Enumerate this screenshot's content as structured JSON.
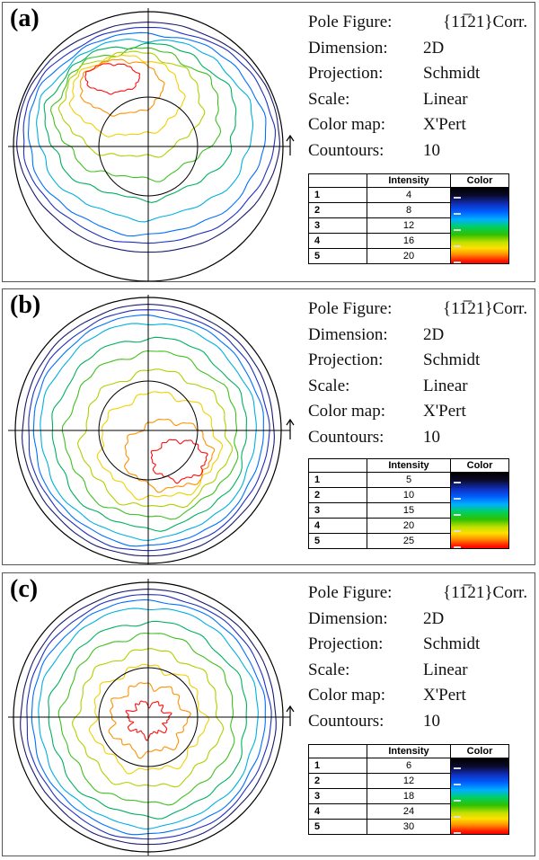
{
  "panels": [
    {
      "label": "(a)",
      "info": {
        "pole_figure_key": "Pole Figure:",
        "pole_figure_value": "{11̅21}Corr.",
        "dimension_key": "Dimension:",
        "dimension_value": "2D",
        "projection_key": "Projection:",
        "projection_value": "Schmidt",
        "scale_key": "Scale:",
        "scale_value": "Linear",
        "colormap_key": "Color map:",
        "colormap_value": "X'Pert",
        "contours_key": "Countours:",
        "contours_value": "10"
      },
      "legend": {
        "header_intensity": "Intensity",
        "header_color": "Color",
        "rows": [
          {
            "index": "1",
            "intensity": "4"
          },
          {
            "index": "2",
            "intensity": "8"
          },
          {
            "index": "3",
            "intensity": "12"
          },
          {
            "index": "4",
            "intensity": "16"
          },
          {
            "index": "5",
            "intensity": "20"
          }
        ]
      }
    },
    {
      "label": "(b)",
      "info": {
        "pole_figure_key": "Pole Figure:",
        "pole_figure_value": "{11̅21}Corr.",
        "dimension_key": "Dimension:",
        "dimension_value": "2D",
        "projection_key": "Projection:",
        "projection_value": "Schmidt",
        "scale_key": "Scale:",
        "scale_value": "Linear",
        "colormap_key": "Color map:",
        "colormap_value": "X'Pert",
        "contours_key": "Countours:",
        "contours_value": "10"
      },
      "legend": {
        "header_intensity": "Intensity",
        "header_color": "Color",
        "rows": [
          {
            "index": "1",
            "intensity": "5"
          },
          {
            "index": "2",
            "intensity": "10"
          },
          {
            "index": "3",
            "intensity": "15"
          },
          {
            "index": "4",
            "intensity": "20"
          },
          {
            "index": "5",
            "intensity": "25"
          }
        ]
      }
    },
    {
      "label": "(c)",
      "info": {
        "pole_figure_key": "Pole Figure:",
        "pole_figure_value": "{11̅21}Corr.",
        "dimension_key": "Dimension:",
        "dimension_value": "2D",
        "projection_key": "Projection:",
        "projection_value": "Schmidt",
        "scale_key": "Scale:",
        "scale_value": "Linear",
        "colormap_key": "Color map:",
        "colormap_value": "X'Pert",
        "contours_key": "Countours:",
        "contours_value": "10"
      },
      "legend": {
        "header_intensity": "Intensity",
        "header_color": "Color",
        "rows": [
          {
            "index": "1",
            "intensity": "6"
          },
          {
            "index": "2",
            "intensity": "12"
          },
          {
            "index": "3",
            "intensity": "18"
          },
          {
            "index": "4",
            "intensity": "24"
          },
          {
            "index": "5",
            "intensity": "30"
          }
        ]
      }
    }
  ],
  "contour_colors": [
    "#1a1a6e",
    "#2030c0",
    "#0070ff",
    "#00b0e0",
    "#00b060",
    "#40c020",
    "#b0d000",
    "#f0d000",
    "#ff9000",
    "#ff1010"
  ]
}
